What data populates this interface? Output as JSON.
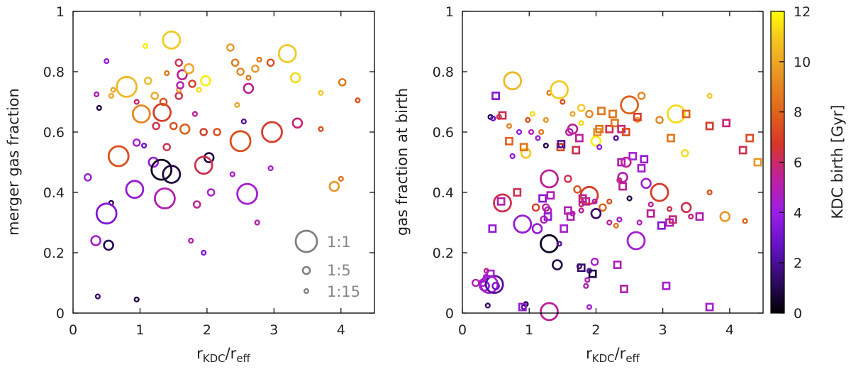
{
  "colors": {
    "colormap": [
      "#000000",
      "#2d0a5e",
      "#7a13d8",
      "#a61fd0",
      "#c42080",
      "#d8401e",
      "#e0761a",
      "#eaa12c",
      "#f2d023",
      "#ffff00"
    ],
    "legend": "#808080",
    "axis": "#000000"
  },
  "colorbar": {
    "label": "KDC birth [Gyr]",
    "min": 0,
    "max": 12,
    "ticks": [
      "0",
      "2",
      "4",
      "6",
      "8",
      "10",
      "12"
    ]
  },
  "chart_data": [
    {
      "type": "scatter",
      "ylabel": "merger gas fraction",
      "xlabel": "r_KDC / r_eff",
      "xlim": [
        0,
        4.5
      ],
      "ylim": [
        0,
        1
      ],
      "xticks": [
        "0",
        "1",
        "2",
        "3",
        "4"
      ],
      "yticks": [
        "0",
        "0.2",
        "0.4",
        "0.6",
        "0.8",
        "1"
      ],
      "legend": [
        {
          "label": "1:1",
          "ratio": 1
        },
        {
          "label": "1:5",
          "ratio": 5
        },
        {
          "label": "1:15",
          "ratio": 15
        }
      ],
      "points": [
        [
          0.37,
          0.055,
          15,
          1.5
        ],
        [
          0.95,
          0.045,
          15,
          1.0
        ],
        [
          0.39,
          0.68,
          15,
          1.0
        ],
        [
          0.57,
          0.365,
          15,
          1.2
        ],
        [
          0.22,
          0.45,
          8,
          3.5
        ],
        [
          0.5,
          0.33,
          2,
          3.0
        ],
        [
          0.53,
          0.225,
          5,
          1.2
        ],
        [
          0.34,
          0.24,
          5,
          4.0
        ],
        [
          0.92,
          0.41,
          3,
          3.5
        ],
        [
          0.95,
          0.565,
          8,
          4.0
        ],
        [
          1.06,
          0.555,
          15,
          2.5
        ],
        [
          1.2,
          0.5,
          5,
          3.5
        ],
        [
          1.32,
          0.475,
          2,
          0.5
        ],
        [
          1.47,
          0.46,
          3,
          1.0
        ],
        [
          2.03,
          0.515,
          5,
          1.0
        ],
        [
          1.95,
          0.49,
          3,
          6.0
        ],
        [
          1.37,
          0.38,
          2,
          4.5
        ],
        [
          2.06,
          0.4,
          8,
          4.0
        ],
        [
          1.85,
          0.36,
          8,
          5.0
        ],
        [
          2.6,
          0.395,
          2,
          4.0
        ],
        [
          2.38,
          0.46,
          15,
          4.0
        ],
        [
          2.95,
          0.48,
          15,
          4.0
        ],
        [
          2.75,
          0.3,
          15,
          4.5
        ],
        [
          1.76,
          0.24,
          15,
          4.5
        ],
        [
          1.95,
          0.2,
          15,
          3.0
        ],
        [
          0.68,
          0.52,
          2,
          7.0
        ],
        [
          1.02,
          0.66,
          3,
          8.5
        ],
        [
          1.33,
          0.665,
          3,
          6.5
        ],
        [
          1.24,
          0.62,
          8,
          6.0
        ],
        [
          1.4,
          0.55,
          8,
          6.0
        ],
        [
          1.5,
          0.62,
          8,
          7.0
        ],
        [
          1.67,
          0.61,
          5,
          7.5
        ],
        [
          1.95,
          0.6,
          8,
          6.5
        ],
        [
          2.15,
          0.6,
          8,
          7.0
        ],
        [
          2.5,
          0.57,
          2,
          7.0
        ],
        [
          2.97,
          0.6,
          2,
          6.5
        ],
        [
          3.35,
          0.63,
          5,
          5.5
        ],
        [
          3.7,
          0.61,
          15,
          7.0
        ],
        [
          3.9,
          0.42,
          5,
          9.0
        ],
        [
          4.0,
          0.445,
          15,
          8.0
        ],
        [
          4.25,
          0.705,
          15,
          7.0
        ],
        [
          0.5,
          0.835,
          15,
          3.5
        ],
        [
          0.35,
          0.725,
          15,
          4.5
        ],
        [
          0.57,
          0.72,
          15,
          9.5
        ],
        [
          0.6,
          0.74,
          15,
          9.5
        ],
        [
          0.8,
          0.75,
          2,
          10.0
        ],
        [
          0.95,
          0.7,
          15,
          5.5
        ],
        [
          1.08,
          0.885,
          15,
          11.5
        ],
        [
          1.12,
          0.77,
          8,
          10.0
        ],
        [
          1.22,
          0.72,
          8,
          9.5
        ],
        [
          1.35,
          0.7,
          8,
          7.0
        ],
        [
          1.4,
          0.795,
          15,
          8.0
        ],
        [
          1.47,
          0.905,
          3,
          10.5
        ],
        [
          1.58,
          0.72,
          8,
          6.0
        ],
        [
          1.63,
          0.79,
          5,
          5.0
        ],
        [
          1.73,
          0.81,
          5,
          9.5
        ],
        [
          1.78,
          0.76,
          8,
          6.5
        ],
        [
          1.88,
          0.74,
          15,
          11.0
        ],
        [
          1.98,
          0.77,
          5,
          11.5
        ],
        [
          1.82,
          0.66,
          15,
          5.0
        ],
        [
          1.58,
          0.74,
          15,
          9.5
        ],
        [
          2.35,
          0.88,
          8,
          9.0
        ],
        [
          2.42,
          0.83,
          8,
          8.0
        ],
        [
          2.5,
          0.8,
          8,
          8.5
        ],
        [
          2.45,
          0.69,
          15,
          9.5
        ],
        [
          2.55,
          0.635,
          15,
          2.0
        ],
        [
          2.62,
          0.745,
          5,
          5.0
        ],
        [
          2.62,
          0.78,
          15,
          8.0
        ],
        [
          2.72,
          0.81,
          8,
          9.0
        ],
        [
          2.78,
          0.84,
          15,
          8.0
        ],
        [
          2.95,
          0.83,
          8,
          7.0
        ],
        [
          3.2,
          0.86,
          3,
          10.5
        ],
        [
          3.32,
          0.78,
          5,
          11.0
        ],
        [
          3.7,
          0.73,
          15,
          10.5
        ],
        [
          4.02,
          0.765,
          8,
          8.0
        ],
        [
          1.6,
          0.755,
          8,
          4.5
        ],
        [
          1.58,
          0.83,
          8,
          6.0
        ]
      ]
    },
    {
      "type": "scatter",
      "ylabel": "gas fraction at birth",
      "xlabel": "r_KDC / r_eff",
      "xlim": [
        0,
        4.5
      ],
      "ylim": [
        0,
        1
      ],
      "xticks": [
        "0",
        "1",
        "2",
        "3",
        "4"
      ],
      "yticks": [
        "0",
        "0.2",
        "0.4",
        "0.6",
        "0.8",
        "1"
      ],
      "points": [
        [
          0.2,
          0.1,
          8,
          4.5
        ],
        [
          0.3,
          0.1,
          8,
          4.5
        ],
        [
          0.33,
          0.09,
          5,
          3.5
        ],
        [
          0.35,
          0.12,
          15,
          4.0
        ],
        [
          0.4,
          0.095,
          3,
          4.0
        ],
        [
          0.48,
          0.095,
          3,
          2.0
        ],
        [
          0.5,
          0.09,
          8,
          2.5
        ],
        [
          0.38,
          0.025,
          15,
          1.5
        ],
        [
          0.36,
          0.14,
          15,
          5.5
        ],
        [
          0.92,
          0.02,
          15,
          2.0
        ],
        [
          0.95,
          0.03,
          15,
          1.0
        ],
        [
          1.3,
          0.005,
          3,
          5.0
        ],
        [
          1.9,
          0.02,
          15,
          4.0
        ],
        [
          1.42,
          0.16,
          5,
          1.0
        ],
        [
          1.75,
          0.155,
          15,
          1.5
        ],
        [
          1.9,
          0.14,
          15,
          2.0
        ],
        [
          1.85,
          0.09,
          15,
          4.5
        ],
        [
          1.98,
          0.17,
          8,
          4.0
        ],
        [
          1.87,
          0.11,
          15,
          4.5
        ],
        [
          1.3,
          0.23,
          3,
          0.5
        ],
        [
          1.45,
          0.23,
          15,
          2.0
        ],
        [
          0.9,
          0.295,
          3,
          3.5
        ],
        [
          1.12,
          0.28,
          5,
          3.5
        ],
        [
          1.22,
          0.31,
          8,
          4.5
        ],
        [
          1.1,
          0.35,
          8,
          6.5
        ],
        [
          1.25,
          0.35,
          8,
          5.0
        ],
        [
          1.28,
          0.34,
          8,
          4.5
        ],
        [
          0.6,
          0.365,
          3,
          6.0
        ],
        [
          1.3,
          0.445,
          3,
          5.0
        ],
        [
          1.58,
          0.445,
          8,
          6.0
        ],
        [
          1.72,
          0.41,
          8,
          7.0
        ],
        [
          1.65,
          0.33,
          15,
          4.5
        ],
        [
          1.78,
          0.36,
          15,
          5.5
        ],
        [
          1.78,
          0.34,
          15,
          5.0
        ],
        [
          1.9,
          0.39,
          3,
          6.5
        ],
        [
          2.1,
          0.35,
          8,
          7.5
        ],
        [
          1.98,
          0.37,
          15,
          4.5
        ],
        [
          2.0,
          0.33,
          5,
          1.5
        ],
        [
          2.2,
          0.37,
          15,
          7.0
        ],
        [
          2.2,
          0.3,
          15,
          5.0
        ],
        [
          2.3,
          0.29,
          15,
          8.0
        ],
        [
          2.35,
          0.31,
          15,
          4.0
        ],
        [
          2.4,
          0.45,
          5,
          4.5
        ],
        [
          2.45,
          0.5,
          5,
          5.0
        ],
        [
          2.5,
          0.38,
          15,
          1.0
        ],
        [
          2.65,
          0.3,
          15,
          4.5
        ],
        [
          2.6,
          0.24,
          3,
          4.0
        ],
        [
          2.75,
          0.43,
          5,
          4.0
        ],
        [
          2.82,
          0.36,
          15,
          5.0
        ],
        [
          2.95,
          0.4,
          3,
          6.5
        ],
        [
          3.1,
          0.345,
          15,
          6.0
        ],
        [
          3.35,
          0.35,
          5,
          6.0
        ],
        [
          3.42,
          0.32,
          15,
          5.5
        ],
        [
          3.7,
          0.4,
          15,
          7.0
        ],
        [
          3.93,
          0.32,
          5,
          9.0
        ],
        [
          4.23,
          0.305,
          15,
          7.5
        ],
        [
          0.55,
          0.65,
          15,
          6.0
        ],
        [
          0.7,
          0.62,
          15,
          8.5
        ],
        [
          0.75,
          0.52,
          15,
          3.5
        ],
        [
          0.75,
          0.77,
          3,
          10.0
        ],
        [
          0.85,
          0.6,
          15,
          3.5
        ],
        [
          0.95,
          0.53,
          5,
          10.5
        ],
        [
          0.98,
          0.64,
          15,
          7.0
        ],
        [
          1.03,
          0.6,
          15,
          4.5
        ],
        [
          1.05,
          0.66,
          15,
          11.0
        ],
        [
          1.13,
          0.58,
          15,
          4.0
        ],
        [
          1.18,
          0.6,
          15,
          8.0
        ],
        [
          1.25,
          0.64,
          15,
          9.0
        ],
        [
          1.3,
          0.73,
          15,
          8.0
        ],
        [
          1.45,
          0.74,
          3,
          10.5
        ],
        [
          1.5,
          0.7,
          15,
          7.0
        ],
        [
          1.6,
          0.6,
          8,
          4.5
        ],
        [
          1.65,
          0.66,
          15,
          9.5
        ],
        [
          1.78,
          0.68,
          8,
          10.5
        ],
        [
          1.78,
          0.63,
          15,
          11.0
        ],
        [
          2.0,
          0.57,
          5,
          11.5
        ],
        [
          1.65,
          0.61,
          5,
          5.0
        ],
        [
          1.9,
          0.66,
          8,
          8.5
        ],
        [
          2.05,
          0.55,
          15,
          3.5
        ],
        [
          2.3,
          0.58,
          15,
          2.0
        ],
        [
          2.5,
          0.69,
          3,
          7.5
        ],
        [
          2.62,
          0.64,
          15,
          9.0
        ],
        [
          2.68,
          0.72,
          8,
          8.5
        ],
        [
          2.95,
          0.64,
          8,
          8.5
        ],
        [
          3.2,
          0.66,
          3,
          11.0
        ],
        [
          3.33,
          0.53,
          8,
          11.0
        ],
        [
          3.7,
          0.72,
          15,
          10.5
        ],
        [
          2.35,
          0.44,
          15,
          5.5
        ],
        [
          0.42,
          0.65,
          15,
          1.0
        ],
        [
          0.46,
          0.645,
          15,
          2.5
        ],
        [
          1.25,
          0.555,
          15,
          1.0
        ],
        [
          1.47,
          0.555,
          15,
          1.0
        ]
      ],
      "squares": [
        [
          0.45,
          0.28,
          3.5
        ],
        [
          0.42,
          0.13,
          4.0
        ],
        [
          0.5,
          0.72,
          3.0
        ],
        [
          0.58,
          0.37,
          4.5
        ],
        [
          0.6,
          0.655,
          6.0
        ],
        [
          0.7,
          0.57,
          7.5
        ],
        [
          0.82,
          0.4,
          6.0
        ],
        [
          0.92,
          0.55,
          8.0
        ],
        [
          0.9,
          0.02,
          3.5
        ],
        [
          1.2,
          0.38,
          3.0
        ],
        [
          1.28,
          0.32,
          3.5
        ],
        [
          1.32,
          0.39,
          4.5
        ],
        [
          1.47,
          0.55,
          7.0
        ],
        [
          1.48,
          0.56,
          2.0
        ],
        [
          1.52,
          0.28,
          4.0
        ],
        [
          1.58,
          0.34,
          4.5
        ],
        [
          1.62,
          0.32,
          4.5
        ],
        [
          1.7,
          0.54,
          6.0
        ],
        [
          1.75,
          0.58,
          5.0
        ],
        [
          1.78,
          0.15,
          1.5
        ],
        [
          1.8,
          0.38,
          5.0
        ],
        [
          1.85,
          0.37,
          5.0
        ],
        [
          1.95,
          0.13,
          1.0
        ],
        [
          2.02,
          0.6,
          9.0
        ],
        [
          2.05,
          0.61,
          8.0
        ],
        [
          2.08,
          0.67,
          8.0
        ],
        [
          2.2,
          0.61,
          6.0
        ],
        [
          2.25,
          0.66,
          8.0
        ],
        [
          2.28,
          0.63,
          8.0
        ],
        [
          2.32,
          0.16,
          4.5
        ],
        [
          2.38,
          0.5,
          4.5
        ],
        [
          2.38,
          0.61,
          5.5
        ],
        [
          2.4,
          0.42,
          5.0
        ],
        [
          2.42,
          0.08,
          4.5
        ],
        [
          2.45,
          0.6,
          7.0
        ],
        [
          2.55,
          0.52,
          4.0
        ],
        [
          2.62,
          0.65,
          6.5
        ],
        [
          2.68,
          0.48,
          4.0
        ],
        [
          2.72,
          0.51,
          3.5
        ],
        [
          2.82,
          0.33,
          5.0
        ],
        [
          2.98,
          0.29,
          3.0
        ],
        [
          3.05,
          0.09,
          4.0
        ],
        [
          3.1,
          0.3,
          4.5
        ],
        [
          3.15,
          0.31,
          5.5
        ],
        [
          3.12,
          0.58,
          8.0
        ],
        [
          3.35,
          0.66,
          7.5
        ],
        [
          3.55,
          0.32,
          4.5
        ],
        [
          3.7,
          0.62,
          6.5
        ],
        [
          3.7,
          0.02,
          4.0
        ],
        [
          3.95,
          0.63,
          5.5
        ],
        [
          4.2,
          0.54,
          6.0
        ],
        [
          4.3,
          0.58,
          7.0
        ],
        [
          4.42,
          0.5,
          9.0
        ]
      ]
    }
  ]
}
